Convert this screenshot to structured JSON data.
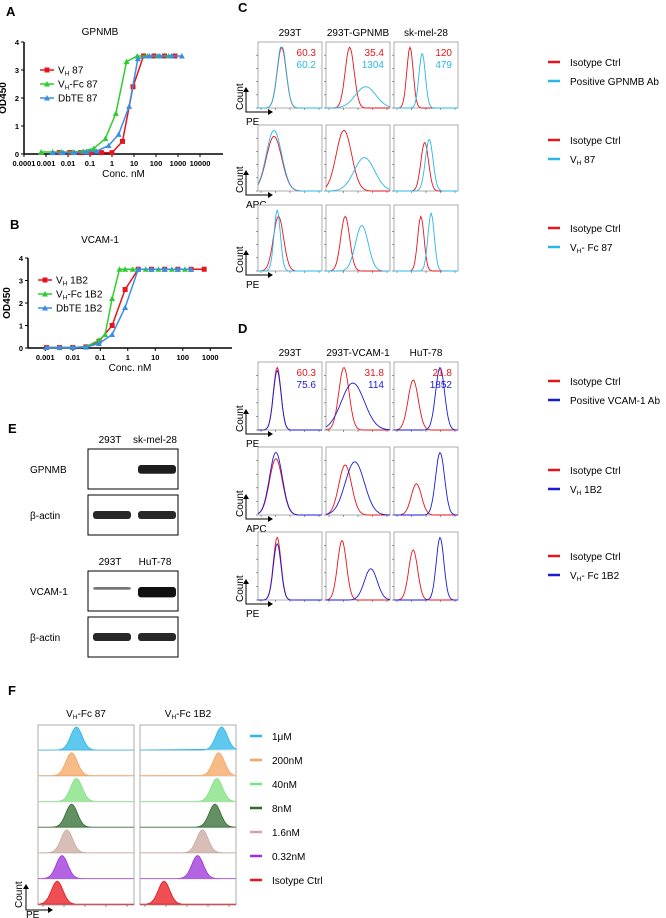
{
  "panels": {
    "A": "A",
    "B": "B",
    "C": "C",
    "D": "D",
    "E": "E",
    "F": "F"
  },
  "colors": {
    "red": "#e8141c",
    "green": "#2ecc2e",
    "blue": "#3a8ee6",
    "cyan": "#29b6e8",
    "navy": "#1a1adb"
  },
  "chart_data": [
    {
      "type": "line",
      "title": "GPNMB",
      "xlabel": "Conc. nM",
      "ylabel": "OD450",
      "xscale": "log",
      "xlim": [
        0.0001,
        10000
      ],
      "ylim": [
        0,
        4
      ],
      "xticks": [
        "0.0001",
        "0.001",
        "0.01",
        "0.1",
        "1",
        "10",
        "100",
        "1000",
        "10000"
      ],
      "yticks": [
        "0",
        "1",
        "2",
        "3",
        "4"
      ],
      "legend": "top-left",
      "series": [
        {
          "name": "VH 87",
          "label_main": "V",
          "label_sub": "H",
          "label_rest": " 87",
          "color": "#e8141c",
          "marker": "square",
          "x": [
            0.004,
            0.012,
            0.037,
            0.11,
            0.33,
            1,
            3,
            9,
            27,
            81,
            243,
            729
          ],
          "y": [
            0.05,
            0.05,
            0.05,
            0.05,
            0.05,
            0.05,
            0.45,
            2.4,
            3.5,
            3.5,
            3.5,
            3.5
          ]
        },
        {
          "name": "VH-Fc 87",
          "label_main": "V",
          "label_sub": "H",
          "label_rest": "-Fc 87",
          "color": "#2ecc2e",
          "marker": "triangle",
          "x": [
            0.0006,
            0.002,
            0.005,
            0.017,
            0.05,
            0.15,
            0.5,
            1.5,
            4.6,
            14,
            41,
            123,
            370
          ],
          "y": [
            0.07,
            0.07,
            0.07,
            0.07,
            0.1,
            0.2,
            0.55,
            1.45,
            3.3,
            3.5,
            3.5,
            3.5,
            3.5
          ]
        },
        {
          "name": "DbTE 87",
          "label_main": "DbTE 87",
          "label_sub": "",
          "label_rest": "",
          "color": "#3a8ee6",
          "marker": "triangle",
          "x": [
            0.002,
            0.006,
            0.02,
            0.07,
            0.2,
            0.7,
            2,
            6,
            15,
            50,
            150,
            500,
            1500
          ],
          "y": [
            0.05,
            0.05,
            0.05,
            0.08,
            0.1,
            0.3,
            0.7,
            1.7,
            3.4,
            3.5,
            3.5,
            3.5,
            3.5
          ]
        }
      ]
    },
    {
      "type": "line",
      "title": "VCAM-1",
      "xlabel": "Conc. nM",
      "ylabel": "OD450",
      "xscale": "log",
      "xlim": [
        0.0005,
        1000
      ],
      "ylim": [
        0,
        4
      ],
      "xticks": [
        "0.001",
        "0.01",
        "0.1",
        "1",
        "10",
        "100",
        "1000"
      ],
      "yticks": [
        "0",
        "1",
        "2",
        "3",
        "4"
      ],
      "legend": "top-left",
      "series": [
        {
          "name": "VH 1B2",
          "label_main": "V",
          "label_sub": "H",
          "label_rest": " 1B2",
          "color": "#e8141c",
          "marker": "square",
          "x": [
            0.0011,
            0.0033,
            0.01,
            0.03,
            0.09,
            0.27,
            0.8,
            2.4,
            7.3,
            22,
            66,
            200,
            600
          ],
          "y": [
            0.02,
            0.02,
            0.02,
            0.05,
            0.3,
            1.0,
            2.6,
            3.5,
            3.5,
            3.5,
            3.5,
            3.5,
            3.5
          ]
        },
        {
          "name": "VH-Fc 1B2",
          "label_main": "V",
          "label_sub": "H",
          "label_rest": "-Fc 1B2",
          "color": "#2ecc2e",
          "marker": "triangle",
          "x": [
            0.0011,
            0.0033,
            0.01,
            0.03,
            0.09,
            0.15,
            0.27,
            0.5,
            0.8,
            1.5,
            2.4,
            4.5,
            7.3,
            13,
            22,
            40,
            66,
            120,
            200
          ],
          "y": [
            0.02,
            0.02,
            0.02,
            0.06,
            0.35,
            0.6,
            2.2,
            3.5,
            3.5,
            3.5,
            3.5,
            3.5,
            3.5,
            3.5,
            3.5,
            3.5,
            3.5,
            3.5,
            3.5
          ]
        },
        {
          "name": "DbTE 1B2",
          "label_main": "DbTE 1B2",
          "label_sub": "",
          "label_rest": "",
          "color": "#3a8ee6",
          "marker": "triangle",
          "x": [
            0.0011,
            0.0033,
            0.01,
            0.03,
            0.09,
            0.27,
            0.8,
            2.4,
            7.3,
            22,
            66,
            200
          ],
          "y": [
            0.02,
            0.02,
            0.02,
            0.04,
            0.2,
            0.6,
            1.8,
            3.5,
            3.5,
            3.5,
            3.5,
            3.5
          ]
        }
      ]
    }
  ],
  "C": {
    "cols": [
      "293T",
      "293T-GPNMB",
      "sk-mel-28"
    ],
    "mfi": [
      [
        "60.3",
        "60.2"
      ],
      [
        "35.4",
        "1304"
      ],
      [
        "120",
        "479"
      ]
    ],
    "axes": [
      "PE",
      "APC",
      "PE"
    ],
    "ylabel": "Count",
    "legends": [
      [
        "Isotype Ctrl",
        "Positive GPNMB  Ab"
      ],
      [
        "Isotype Ctrl",
        "V",
        "H",
        " 87"
      ],
      [
        "Isotype Ctrl",
        "V",
        "H",
        "- Fc 87"
      ]
    ]
  },
  "D": {
    "cols": [
      "293T",
      "293T-VCAM-1",
      "HuT-78"
    ],
    "mfi": [
      [
        "60.3",
        "75.6"
      ],
      [
        "31.8",
        "114"
      ],
      [
        "21.8",
        "1852"
      ]
    ],
    "axes": [
      "PE",
      "APC",
      "PE"
    ],
    "legends": [
      [
        "Isotype Ctrl",
        "Positive VCAM-1  Ab"
      ],
      [
        "Isotype Ctrl",
        "V",
        "H",
        " 1B2"
      ],
      [
        "Isotype Ctrl",
        "V",
        "H",
        "- Fc 1B2"
      ]
    ]
  },
  "E": {
    "top_cols": [
      "293T",
      "sk-mel-28"
    ],
    "top_rows": [
      "GPNMB",
      "β-actin"
    ],
    "bottom_cols": [
      "293T",
      "HuT-78"
    ],
    "bottom_rows": [
      "VCAM-1",
      "β-actin"
    ]
  },
  "F": {
    "cols": [
      [
        "V",
        "H",
        "-Fc 87"
      ],
      [
        "V",
        "H",
        "-Fc 1B2"
      ]
    ],
    "xlabel": "PE",
    "ylabel": "Count",
    "legend": [
      {
        "label": "1μM",
        "color": "#29b6e8"
      },
      {
        "label": "200nM",
        "color": "#f4a460"
      },
      {
        "label": "40nM",
        "color": "#7ee07e"
      },
      {
        "label": "8nM",
        "color": "#2e6b2e"
      },
      {
        "label": "1.6nM",
        "color": "#c9a9a0"
      },
      {
        "label": "0.32nM",
        "color": "#9b30d9"
      },
      {
        "label": "Isotype Ctrl",
        "color": "#e8141c"
      }
    ]
  }
}
